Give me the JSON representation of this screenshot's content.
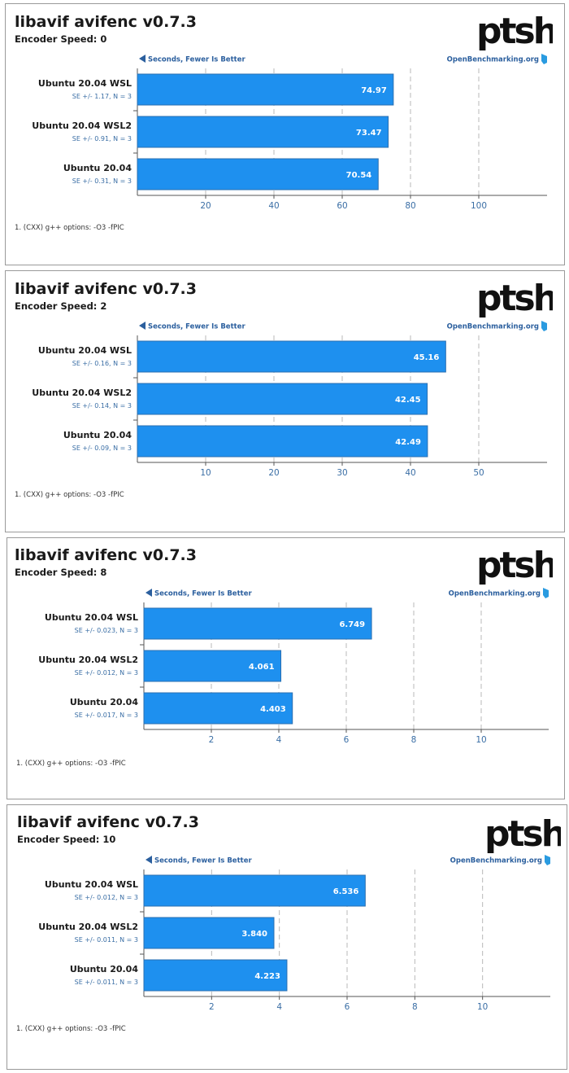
{
  "logo_text": "ptsh",
  "colors": {
    "bar": "#1e90ef",
    "bar_stroke": "#2b6fb0",
    "arrow": "#2b5f9e",
    "tick_text": "#3a6ea5",
    "se_text": "#3a6ea5",
    "grid": "#b8b8b8",
    "axis": "#555555"
  },
  "charts": [
    {
      "title": "libavif avifenc v0.7.3",
      "subtitle": "Encoder Speed: 0",
      "direction": "Seconds, Fewer Is Better",
      "site": "OpenBenchmarking.org",
      "footnote": "1. (CXX) g++ options: -O3 -fPIC"
    },
    {
      "title": "libavif avifenc v0.7.3",
      "subtitle": "Encoder Speed: 2",
      "direction": "Seconds, Fewer Is Better",
      "site": "OpenBenchmarking.org",
      "footnote": "1. (CXX) g++ options: -O3 -fPIC"
    },
    {
      "title": "libavif avifenc v0.7.3",
      "subtitle": "Encoder Speed: 8",
      "direction": "Seconds, Fewer Is Better",
      "site": "OpenBenchmarking.org",
      "footnote": "1. (CXX) g++ options: -O3 -fPIC"
    },
    {
      "title": "libavif avifenc v0.7.3",
      "subtitle": "Encoder Speed: 10",
      "direction": "Seconds, Fewer Is Better",
      "site": "OpenBenchmarking.org",
      "footnote": "1. (CXX) g++ options: -O3 -fPIC"
    }
  ],
  "chart_data": [
    {
      "type": "bar",
      "title": "libavif avifenc v0.7.3",
      "subtitle": "Encoder Speed: 0",
      "xlabel": "Seconds, Fewer Is Better",
      "categories": [
        "Ubuntu 20.04 WSL",
        "Ubuntu 20.04 WSL2",
        "Ubuntu 20.04"
      ],
      "se_labels": [
        "SE +/- 1.17, N = 3",
        "SE +/- 0.91, N = 3",
        "SE +/- 0.31, N = 3"
      ],
      "values": [
        74.97,
        73.47,
        70.54
      ],
      "value_labels": [
        "74.97",
        "73.47",
        "70.54"
      ],
      "xlim": [
        0,
        120
      ],
      "ticks": [
        20,
        40,
        60,
        80,
        100
      ],
      "tick_labels": [
        "20",
        "40",
        "60",
        "80",
        "100"
      ],
      "grid": true
    },
    {
      "type": "bar",
      "title": "libavif avifenc v0.7.3",
      "subtitle": "Encoder Speed: 2",
      "xlabel": "Seconds, Fewer Is Better",
      "categories": [
        "Ubuntu 20.04 WSL",
        "Ubuntu 20.04 WSL2",
        "Ubuntu 20.04"
      ],
      "se_labels": [
        "SE +/- 0.16, N = 3",
        "SE +/- 0.14, N = 3",
        "SE +/- 0.09, N = 3"
      ],
      "values": [
        45.16,
        42.45,
        42.49
      ],
      "value_labels": [
        "45.16",
        "42.45",
        "42.49"
      ],
      "xlim": [
        0,
        60
      ],
      "ticks": [
        10,
        20,
        30,
        40,
        50
      ],
      "tick_labels": [
        "10",
        "20",
        "30",
        "40",
        "50"
      ],
      "grid": true
    },
    {
      "type": "bar",
      "title": "libavif avifenc v0.7.3",
      "subtitle": "Encoder Speed: 8",
      "xlabel": "Seconds, Fewer Is Better",
      "categories": [
        "Ubuntu 20.04 WSL",
        "Ubuntu 20.04 WSL2",
        "Ubuntu 20.04"
      ],
      "se_labels": [
        "SE +/- 0.023, N = 3",
        "SE +/- 0.012, N = 3",
        "SE +/- 0.017, N = 3"
      ],
      "values": [
        6.749,
        4.061,
        4.403
      ],
      "value_labels": [
        "6.749",
        "4.061",
        "4.403"
      ],
      "xlim": [
        0,
        12
      ],
      "ticks": [
        2,
        4,
        6,
        8,
        10
      ],
      "tick_labels": [
        "2",
        "4",
        "6",
        "8",
        "10"
      ],
      "grid": true
    },
    {
      "type": "bar",
      "title": "libavif avifenc v0.7.3",
      "subtitle": "Encoder Speed: 10",
      "xlabel": "Seconds, Fewer Is Better",
      "categories": [
        "Ubuntu 20.04 WSL",
        "Ubuntu 20.04 WSL2",
        "Ubuntu 20.04"
      ],
      "se_labels": [
        "SE +/- 0.012, N = 3",
        "SE +/- 0.011, N = 3",
        "SE +/- 0.011, N = 3"
      ],
      "values": [
        6.536,
        3.84,
        4.223
      ],
      "value_labels": [
        "6.536",
        "3.840",
        "4.223"
      ],
      "xlim": [
        0,
        12
      ],
      "ticks": [
        2,
        4,
        6,
        8,
        10
      ],
      "tick_labels": [
        "2",
        "4",
        "6",
        "8",
        "10"
      ],
      "grid": true
    }
  ]
}
